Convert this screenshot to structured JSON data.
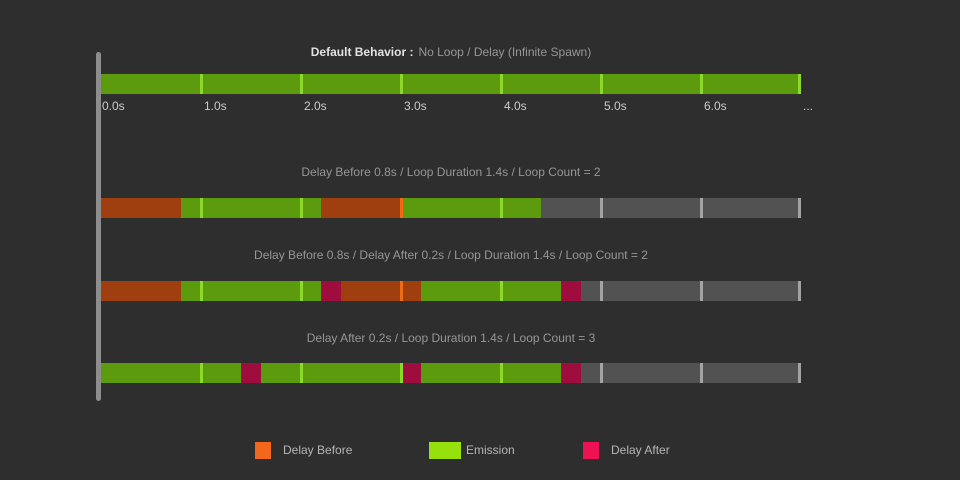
{
  "page": {
    "background": "#2e2e2e"
  },
  "colors": {
    "emission": "#5d9b0e",
    "emission_tick": "#8cd92b",
    "delay_before": "#9f3e0e",
    "delay_before_tick": "#ef6a14",
    "delay_after": "#9f0d3f",
    "delay_after_tick": "#ee1254",
    "inactive": "#525252",
    "inactive_tick": "#a3a3a3",
    "axis_line": "#8d8d8d"
  },
  "axis": {
    "duration_seconds": 7.0,
    "tick_interval_seconds": 1.0,
    "labels": [
      "0.0s",
      "1.0s",
      "2.0s",
      "3.0s",
      "4.0s",
      "5.0s",
      "6.0s"
    ],
    "overflow_label": "..."
  },
  "charts": [
    {
      "title_bold": "Default Behavior :",
      "title_rest": "No Loop / Delay (Infinite Spawn)",
      "segments": [
        {
          "type": "emission",
          "start": 0.0,
          "end": 7.0
        }
      ]
    },
    {
      "title": "Delay Before 0.8s / Loop Duration 1.4s / Loop Count = 2",
      "segments": [
        {
          "type": "delay_before",
          "start": 0.0,
          "end": 0.8
        },
        {
          "type": "emission",
          "start": 0.8,
          "end": 2.2
        },
        {
          "type": "delay_before",
          "start": 2.2,
          "end": 3.0
        },
        {
          "type": "emission",
          "start": 3.0,
          "end": 4.4
        },
        {
          "type": "inactive",
          "start": 4.4,
          "end": 7.0
        }
      ]
    },
    {
      "title": "Delay Before 0.8s / Delay After 0.2s / Loop Duration 1.4s / Loop Count = 2",
      "segments": [
        {
          "type": "delay_before",
          "start": 0.0,
          "end": 0.8
        },
        {
          "type": "emission",
          "start": 0.8,
          "end": 2.2
        },
        {
          "type": "delay_after",
          "start": 2.2,
          "end": 2.4
        },
        {
          "type": "delay_before",
          "start": 2.4,
          "end": 3.2
        },
        {
          "type": "emission",
          "start": 3.2,
          "end": 4.6
        },
        {
          "type": "delay_after",
          "start": 4.6,
          "end": 4.8
        },
        {
          "type": "inactive",
          "start": 4.8,
          "end": 7.0
        }
      ]
    },
    {
      "title": "Delay After 0.2s / Loop Duration 1.4s / Loop Count = 3",
      "segments": [
        {
          "type": "emission",
          "start": 0.0,
          "end": 1.4
        },
        {
          "type": "delay_after",
          "start": 1.4,
          "end": 1.6
        },
        {
          "type": "emission",
          "start": 1.6,
          "end": 3.0
        },
        {
          "type": "delay_after",
          "start": 3.0,
          "end": 3.2
        },
        {
          "type": "emission",
          "start": 3.2,
          "end": 4.6
        },
        {
          "type": "delay_after",
          "start": 4.6,
          "end": 4.8
        },
        {
          "type": "inactive",
          "start": 4.8,
          "end": 7.0
        }
      ]
    }
  ],
  "legend": [
    {
      "label": "Delay Before",
      "color": "#f2671c"
    },
    {
      "label": "Emission",
      "color": "#96e00e"
    },
    {
      "label": "Delay After",
      "color": "#ee1254"
    }
  ]
}
